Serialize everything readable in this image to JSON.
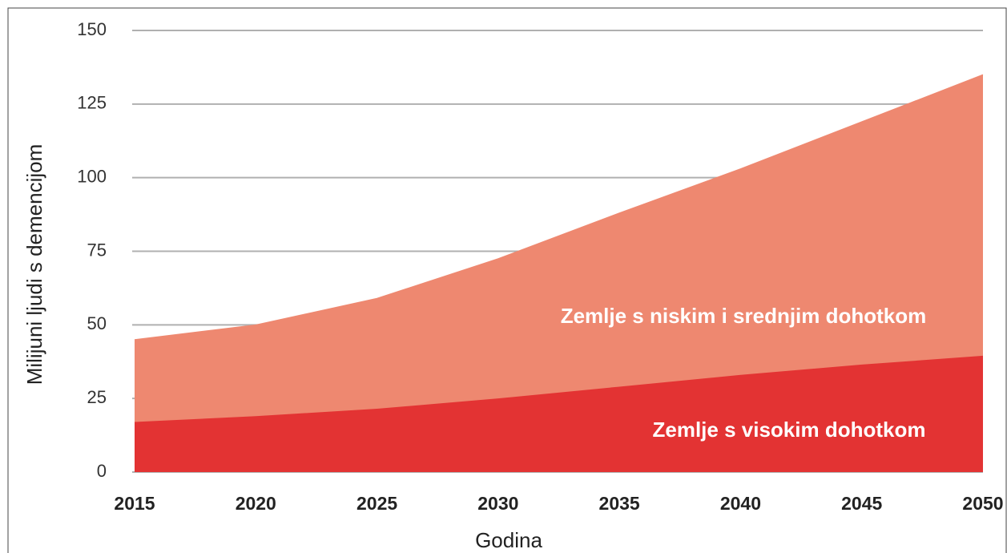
{
  "chart_data": {
    "type": "stacked-area",
    "x": [
      2015,
      2020,
      2025,
      2030,
      2035,
      2040,
      2045,
      2050
    ],
    "series": [
      {
        "name": "Zemlje s visokim dohotkom",
        "color": "#e33333",
        "values": [
          17,
          19,
          21.5,
          25,
          29,
          33,
          36.5,
          39.5
        ]
      },
      {
        "name": "Zemlje s niskim i srednjim dohotkom",
        "color": "#ee8870",
        "values": [
          28,
          31,
          37.5,
          47.5,
          59,
          70,
          82.5,
          95.5
        ]
      }
    ],
    "xlabel": "Godina",
    "ylabel": "Milijuni ljudi s demencijom",
    "xlim": [
      2015,
      2050
    ],
    "xticks": [
      2015,
      2020,
      2025,
      2030,
      2035,
      2040,
      2045,
      2050
    ],
    "ylim": [
      0,
      150
    ],
    "yticks": [
      0,
      25,
      50,
      75,
      100,
      125,
      150
    ],
    "grid": true
  }
}
